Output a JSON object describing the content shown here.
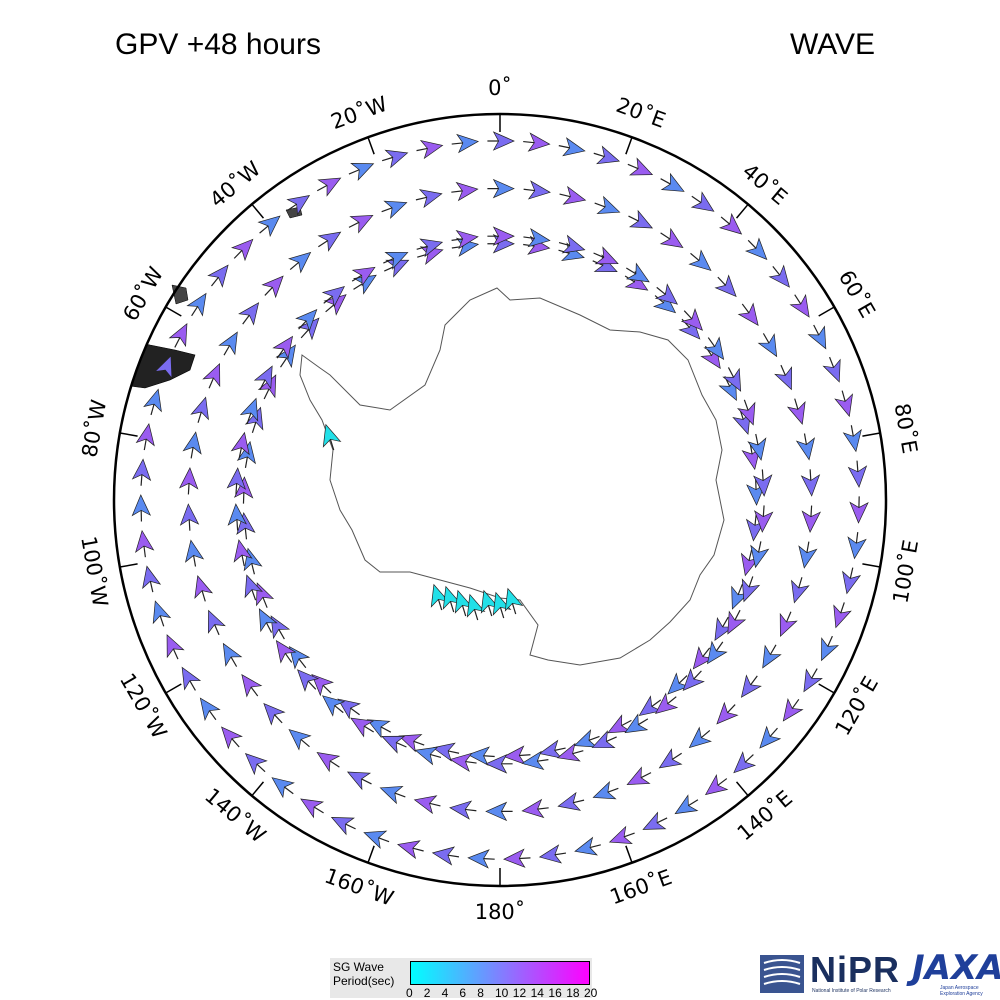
{
  "header": {
    "left_title": "GPV +48 hours",
    "right_title": "WAVE"
  },
  "map": {
    "projection": "south-polar-stereographic",
    "longitude_labels": [
      "0˚",
      "20˚E",
      "40˚E",
      "60˚E",
      "80˚E",
      "100˚E",
      "120˚E",
      "140˚E",
      "160˚E",
      "180˚",
      "160˚W",
      "140˚W",
      "120˚W",
      "100˚W",
      "80˚W",
      "60˚W",
      "40˚W",
      "20˚W"
    ],
    "land_color": "#ffffff",
    "coastline_color": "#555555",
    "frame_color": "#000000"
  },
  "wave_field": {
    "arrow_rings_deg_colatitude": [
      25,
      30.5,
      36,
      41.5
    ],
    "flow": "clockwise-circumpolar",
    "predominant_period_colors": [
      "#7a6cf0",
      "#9a5cf0",
      "#5a8af0"
    ],
    "coastal_arrow_color": "#22e0e8"
  },
  "legend": {
    "title_line1": "SG Wave",
    "title_line2": "Period(sec)",
    "ticks": [
      "0",
      "2",
      "4",
      "6",
      "8",
      "10",
      "12",
      "14",
      "16",
      "18",
      "20"
    ],
    "color_low": "#00ffff",
    "color_mid": "#8080ff",
    "color_high": "#ff00ff"
  },
  "logos": {
    "nipr_name": "NiPR",
    "nipr_subtitle": "National Institute of Polar Research",
    "jaxa_name": "JAXA",
    "jaxa_subtitle": "Japan Aerospace Exploration Agency"
  }
}
